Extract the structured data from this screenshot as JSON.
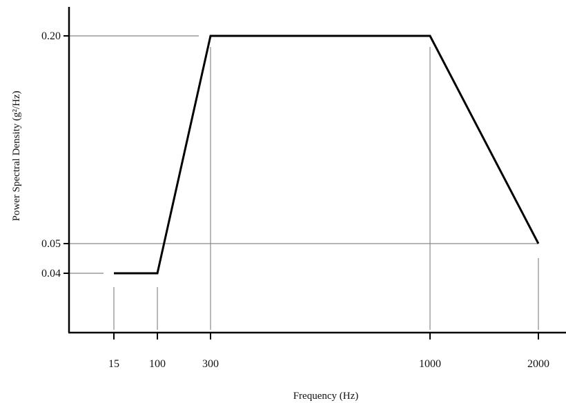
{
  "chart_data": {
    "type": "line",
    "title": "",
    "xlabel": "Frequency (Hz)",
    "ylabel": "Power Spectral Density (g²/Hz)",
    "x_ticks": [
      "15",
      "100",
      "300",
      "1000",
      "2000"
    ],
    "y_ticks": [
      "0.04",
      "0.05",
      "0.20"
    ],
    "series": [
      {
        "x": [
          15,
          100,
          300,
          1000,
          2000
        ],
        "y": [
          0.04,
          0.04,
          0.2,
          0.2,
          0.05
        ]
      }
    ],
    "reference_lines": [
      {
        "axis": "y",
        "value": 0.2
      },
      {
        "axis": "y",
        "value": 0.05
      },
      {
        "axis": "y",
        "value": 0.04
      },
      {
        "axis": "x",
        "value": 15
      },
      {
        "axis": "x",
        "value": 100
      },
      {
        "axis": "x",
        "value": 300
      },
      {
        "axis": "x",
        "value": 1000
      },
      {
        "axis": "x",
        "value": 2000
      }
    ],
    "grid": false,
    "legend": "none",
    "colors": {
      "line": "#000000",
      "reference": "#888888",
      "axis": "#000000"
    }
  }
}
